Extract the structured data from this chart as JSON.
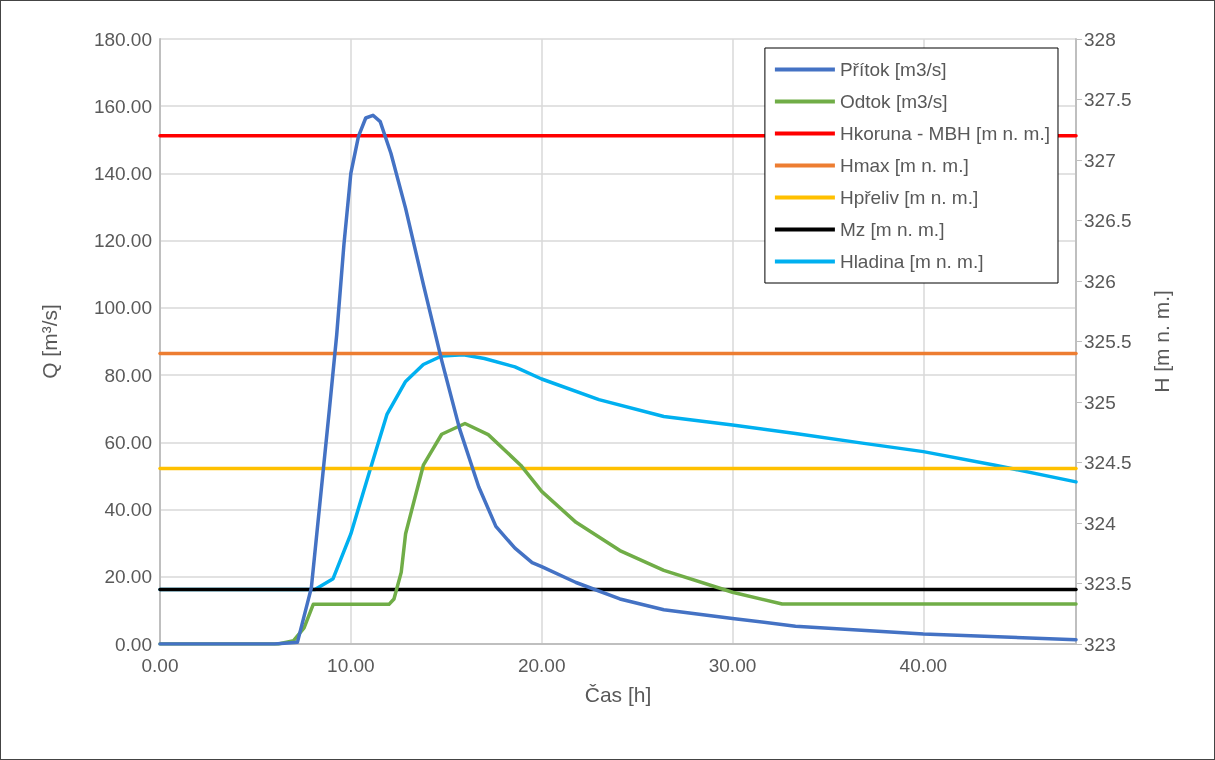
{
  "chart_data": {
    "type": "line",
    "xlabel": "Čas [h]",
    "ylabel": "Q [m³/s]",
    "y2label": "H [m n. m.]",
    "xlim": [
      0,
      48
    ],
    "xticks": [
      {
        "value": 0,
        "label": "0.00"
      },
      {
        "value": 10,
        "label": "10.00"
      },
      {
        "value": 20,
        "label": "20.00"
      },
      {
        "value": 30,
        "label": "30.00"
      },
      {
        "value": 40,
        "label": "40.00"
      }
    ],
    "ylim": [
      0,
      180
    ],
    "yticks": [
      {
        "value": 0,
        "label": "0.00"
      },
      {
        "value": 20,
        "label": "20.00"
      },
      {
        "value": 40,
        "label": "40.00"
      },
      {
        "value": 60,
        "label": "60.00"
      },
      {
        "value": 80,
        "label": "80.00"
      },
      {
        "value": 100,
        "label": "100.00"
      },
      {
        "value": 120,
        "label": "120.00"
      },
      {
        "value": 140,
        "label": "140.00"
      },
      {
        "value": 160,
        "label": "160.00"
      },
      {
        "value": 180,
        "label": "180.00"
      }
    ],
    "y2lim": [
      323,
      328
    ],
    "y2ticks": [
      323,
      323.5,
      324,
      324.5,
      325,
      325.5,
      326,
      326.5,
      327,
      327.5,
      328
    ],
    "grid": true,
    "legend": "top right",
    "marker": "none",
    "line_style": "solid",
    "series": [
      {
        "name": "Přítok [m3/s]",
        "color": "#4472c4",
        "x": [
          0,
          6,
          7.2,
          7.93,
          8.31,
          8.88,
          9.26,
          9.64,
          10.0,
          10.4,
          10.78,
          11.16,
          11.54,
          12.1,
          12.87,
          13.8,
          14.76,
          15.7,
          16.7,
          17.6,
          18.6,
          19.5,
          20,
          21.8,
          24.1,
          26.4,
          30,
          33.3,
          40,
          48
        ],
        "values": [
          0,
          0,
          0.5,
          16.7,
          38,
          70,
          92,
          119,
          140,
          151,
          156.5,
          157.3,
          155.4,
          146,
          129.6,
          107,
          84.4,
          64,
          46.8,
          35,
          28.5,
          24.2,
          23,
          18.3,
          13.4,
          10.2,
          7.6,
          5.3,
          3.0,
          1.3
        ]
      },
      {
        "name": "Odtok [m3/s]",
        "color": "#70ad47",
        "x": [
          0,
          6.2,
          7.0,
          7.55,
          8.03,
          12.0,
          12.26,
          12.64,
          12.87,
          13.8,
          14.76,
          15.98,
          17.2,
          18.9,
          20,
          21.8,
          24.1,
          26.4,
          30,
          32.6,
          48
        ],
        "values": [
          0,
          0,
          1,
          4.8,
          11.8,
          11.8,
          13.4,
          21.3,
          32.8,
          53.2,
          62.4,
          65.6,
          62.3,
          53.2,
          45.4,
          36.2,
          27.8,
          21.9,
          15.4,
          11.9,
          11.9
        ]
      },
      {
        "name": "Hkoruna - MBH [m n. m.]",
        "color": "#ff0000",
        "axis": "y2",
        "x": [
          0,
          48
        ],
        "values": [
          327.2,
          327.2
        ]
      },
      {
        "name": "Hmax [m n. m.]",
        "color": "#ed7d31",
        "axis": "y2",
        "x": [
          0,
          48
        ],
        "values": [
          325.4,
          325.4
        ]
      },
      {
        "name": "Hpřeliv [m n. m.]",
        "color": "#ffc000",
        "axis": "y2",
        "x": [
          0,
          48
        ],
        "values": [
          324.45,
          324.45
        ]
      },
      {
        "name": "Mz [m n. m.]",
        "color": "#000000",
        "axis": "y2",
        "x": [
          0,
          48
        ],
        "values": [
          323.45,
          323.45
        ]
      },
      {
        "name": "Hladina [m n. m.]",
        "color": "#00b0f0",
        "axis": "y2",
        "x": [
          0,
          8.12,
          9.07,
          10.0,
          10.97,
          11.9,
          12.87,
          13.8,
          14.76,
          15.9,
          17.0,
          18.6,
          20,
          23,
          26.4,
          30,
          33.3,
          36.8,
          40,
          43.7,
          48
        ],
        "values": [
          323.45,
          323.45,
          323.54,
          323.91,
          324.42,
          324.9,
          325.17,
          325.31,
          325.38,
          325.39,
          325.36,
          325.29,
          325.19,
          325.02,
          324.88,
          324.81,
          324.74,
          324.66,
          324.59,
          324.48,
          324.34
        ]
      }
    ]
  }
}
